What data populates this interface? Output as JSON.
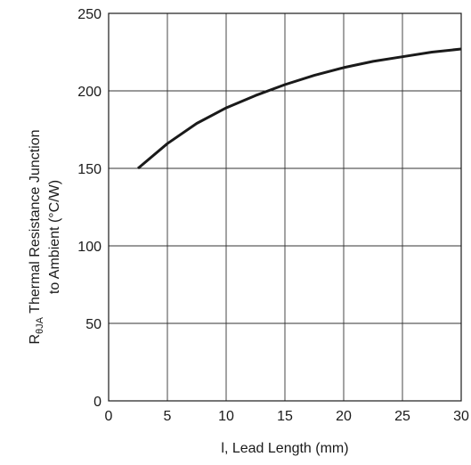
{
  "chart_data": {
    "type": "line",
    "title": "",
    "xlabel": "l, Lead Length (mm)",
    "ylabel_main": "Thermal Resistance Junction",
    "ylabel_symbol": "R",
    "ylabel_subscript": "θJA",
    "ylabel_line2": "to Ambient (°C/W)",
    "xlim": [
      0,
      30
    ],
    "ylim": [
      0,
      250
    ],
    "x_ticks": [
      0,
      5,
      10,
      15,
      20,
      25,
      30
    ],
    "y_ticks": [
      0,
      50,
      100,
      150,
      200,
      250
    ],
    "grid": true,
    "series": [
      {
        "color": "#1a1a1a",
        "x": [
          2.5,
          5,
          7.5,
          10,
          12.5,
          15,
          17.5,
          20,
          22.5,
          25,
          27.5,
          30
        ],
        "y": [
          150,
          166,
          179,
          189,
          197,
          204,
          210,
          215,
          219,
          222,
          225,
          227
        ]
      }
    ]
  }
}
